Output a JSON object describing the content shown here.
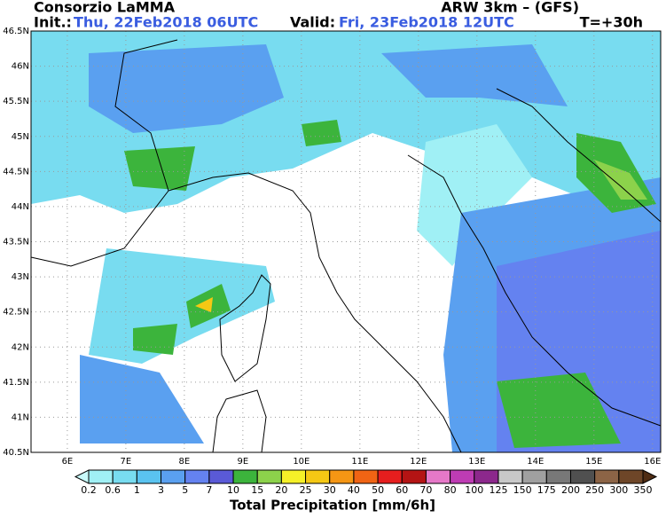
{
  "header": {
    "title": "Consorzio LaMMA",
    "model": "ARW 3km – (GFS)",
    "init_label": "Init.:",
    "init": "Thu, 22Feb2018 06UTC",
    "valid_label": "Valid:",
    "valid": "Fri, 23Feb2018 12UTC",
    "lead": "T=+30h"
  },
  "map": {
    "xlim": [
      5.38,
      16.14
    ],
    "ylim": [
      40.5,
      46.5
    ],
    "xticks": [
      {
        "value": 6,
        "label": "6E"
      },
      {
        "value": 7,
        "label": "7E"
      },
      {
        "value": 8,
        "label": "8E"
      },
      {
        "value": 9,
        "label": "9E"
      },
      {
        "value": 10,
        "label": "10E"
      },
      {
        "value": 11,
        "label": "11E"
      },
      {
        "value": 12,
        "label": "12E"
      },
      {
        "value": 13,
        "label": "13E"
      },
      {
        "value": 14,
        "label": "14E"
      },
      {
        "value": 15,
        "label": "15E"
      },
      {
        "value": 16,
        "label": "16E"
      }
    ],
    "yticks": [
      {
        "value": 40.5,
        "label": "40.5N"
      },
      {
        "value": 41,
        "label": "41N"
      },
      {
        "value": 41.5,
        "label": "41.5N"
      },
      {
        "value": 42,
        "label": "42N"
      },
      {
        "value": 42.5,
        "label": "42.5N"
      },
      {
        "value": 43,
        "label": "43N"
      },
      {
        "value": 43.5,
        "label": "43.5N"
      },
      {
        "value": 44,
        "label": "44N"
      },
      {
        "value": 44.5,
        "label": "44.5N"
      },
      {
        "value": 45,
        "label": "45N"
      },
      {
        "value": 45.5,
        "label": "45.5N"
      },
      {
        "value": 46,
        "label": "46N"
      },
      {
        "value": 46.5,
        "label": "46.5N"
      }
    ]
  },
  "colorbar": {
    "title": "Total Precipitation [mm/6h]",
    "labels": [
      "0.2",
      "0.6",
      "1",
      "3",
      "5",
      "7",
      "10",
      "15",
      "20",
      "25",
      "30",
      "40",
      "50",
      "60",
      "70",
      "80",
      "100",
      "125",
      "150",
      "175",
      "200",
      "250",
      "300",
      "350"
    ],
    "colors": [
      "#c8fafa",
      "#a0f0f5",
      "#78dcf0",
      "#5ac3f0",
      "#5aa0f0",
      "#6482f0",
      "#5a5ad7",
      "#3cb43c",
      "#8cd24b",
      "#f5f028",
      "#f5c814",
      "#f59614",
      "#f06414",
      "#e61e1e",
      "#b41414",
      "#e678c8",
      "#be3cb4",
      "#8c288c",
      "#c8c8c8",
      "#a0a0a0",
      "#787878",
      "#505050",
      "#8c6446",
      "#6e4628",
      "#502d14"
    ]
  }
}
